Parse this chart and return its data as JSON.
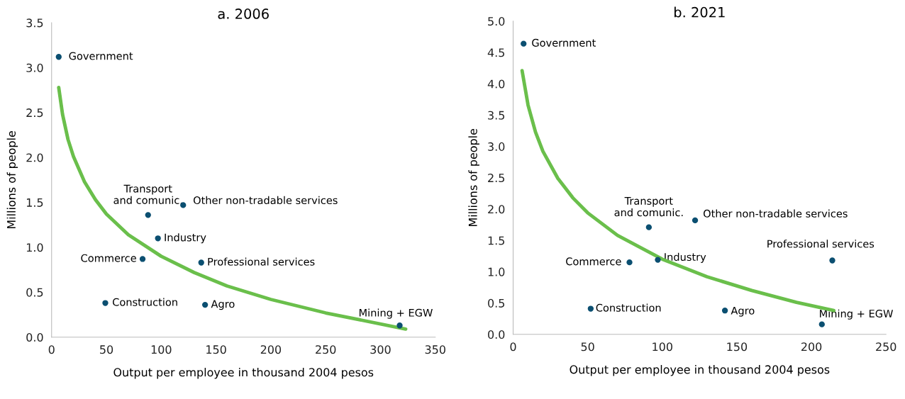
{
  "chart_data": [
    {
      "type": "scatter",
      "title": "a. 2006",
      "xlabel": "Output per employee in thousand 2004 pesos",
      "ylabel": "Millions of people",
      "xlim": [
        0,
        350
      ],
      "xticks": [
        0,
        50,
        100,
        150,
        200,
        250,
        300,
        350
      ],
      "ylim": [
        0,
        3.5
      ],
      "yticks": [
        {
          "value": 0,
          "label": "0.0"
        },
        {
          "value": 0.5,
          "label": "0.5"
        },
        {
          "value": 1,
          "label": "1.0"
        },
        {
          "value": 1.5,
          "label": "1.5"
        },
        {
          "value": 2,
          "label": "2.0"
        },
        {
          "value": 2.5,
          "label": "2.5"
        },
        {
          "value": 3,
          "label": "3.0"
        },
        {
          "value": 3.5,
          "label": "3.5"
        }
      ],
      "grid": false,
      "series": [
        {
          "marker": "circle",
          "color": "#0b4f71",
          "x": [
            6.5,
            88,
            120,
            97,
            83,
            136.5,
            49,
            140,
            317.5
          ],
          "values": [
            3.12,
            1.36,
            1.47,
            1.1,
            0.87,
            0.83,
            0.38,
            0.36,
            0.13
          ]
        },
        {
          "type": "line",
          "marker": "none",
          "color": "#6abf4b",
          "x": [
            6.5,
            10,
            15,
            20,
            30,
            40,
            50,
            70,
            100,
            130,
            160,
            200,
            250,
            323
          ],
          "values": [
            2.78,
            2.48,
            2.2,
            2.01,
            1.73,
            1.53,
            1.37,
            1.14,
            0.9,
            0.72,
            0.57,
            0.42,
            0.27,
            0.09
          ]
        }
      ],
      "annotations": [
        {
          "text": "Government",
          "x": 6.5,
          "y": 3.12
        },
        {
          "text": "Transport\nand comunic.",
          "x": 88,
          "y": 1.36
        },
        {
          "text": "Other non-tradable services",
          "x": 120,
          "y": 1.47
        },
        {
          "text": "Industry",
          "x": 97,
          "y": 1.1
        },
        {
          "text": "Commerce",
          "x": 83,
          "y": 0.87
        },
        {
          "text": "Professional services",
          "x": 136.5,
          "y": 0.83
        },
        {
          "text": "Construction",
          "x": 49,
          "y": 0.38
        },
        {
          "text": "Agro",
          "x": 140,
          "y": 0.36
        },
        {
          "text": "Mining + EGW",
          "x": 317.5,
          "y": 0.13
        }
      ]
    },
    {
      "type": "scatter",
      "title": "b. 2021",
      "xlabel": "Output per employee in thousand 2004 pesos",
      "ylabel": "Millions of people",
      "xlim": [
        0,
        250
      ],
      "xticks": [
        0,
        50,
        100,
        150,
        200,
        250
      ],
      "ylim": [
        0,
        5
      ],
      "yticks": [
        {
          "value": 0,
          "label": "0.0"
        },
        {
          "value": 0.5,
          "label": "0.5"
        },
        {
          "value": 1,
          "label": "1.0"
        },
        {
          "value": 1.5,
          "label": "1.5"
        },
        {
          "value": 2,
          "label": "2.0"
        },
        {
          "value": 2.5,
          "label": "2.5"
        },
        {
          "value": 3,
          "label": "3.0"
        },
        {
          "value": 3.5,
          "label": "3.5"
        },
        {
          "value": 4,
          "label": "4.0"
        },
        {
          "value": 4.5,
          "label": "4.5"
        },
        {
          "value": 5,
          "label": "5.0"
        }
      ],
      "grid": false,
      "series": [
        {
          "marker": "circle",
          "color": "#0b4f71",
          "x": [
            7,
            91,
            122,
            97,
            78,
            214,
            52,
            142,
            207
          ],
          "values": [
            4.64,
            1.71,
            1.82,
            1.19,
            1.15,
            1.18,
            0.41,
            0.38,
            0.16
          ]
        },
        {
          "type": "line",
          "marker": "none",
          "color": "#6abf4b",
          "x": [
            6,
            10,
            15,
            20,
            30,
            40,
            50,
            70,
            100,
            130,
            160,
            190,
            215
          ],
          "values": [
            4.21,
            3.66,
            3.23,
            2.92,
            2.49,
            2.18,
            1.94,
            1.58,
            1.2,
            0.92,
            0.7,
            0.51,
            0.38
          ]
        }
      ],
      "annotations": [
        {
          "text": "Government",
          "x": 7,
          "y": 4.64
        },
        {
          "text": "Transport\nand comunic.",
          "x": 91,
          "y": 1.71
        },
        {
          "text": "Other non-tradable services",
          "x": 122,
          "y": 1.82
        },
        {
          "text": "Industry",
          "x": 97,
          "y": 1.19
        },
        {
          "text": "Commerce",
          "x": 78,
          "y": 1.15
        },
        {
          "text": "Professional services",
          "x": 214,
          "y": 1.18
        },
        {
          "text": "Construction",
          "x": 52,
          "y": 0.41
        },
        {
          "text": "Agro",
          "x": 142,
          "y": 0.38
        },
        {
          "text": "Mining + EGW",
          "x": 207,
          "y": 0.16
        }
      ]
    }
  ]
}
